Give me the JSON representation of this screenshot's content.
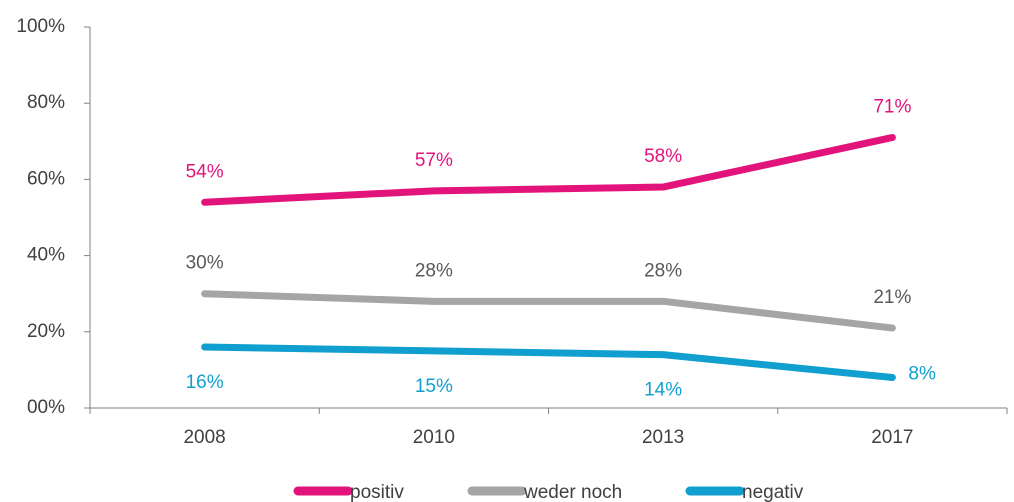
{
  "chart_data": {
    "type": "line",
    "categories": [
      "2008",
      "2010",
      "2013",
      "2017"
    ],
    "series": [
      {
        "name": "positiv",
        "color": "#e2147c",
        "values": [
          54,
          57,
          58,
          71
        ],
        "value_labels": [
          "54%",
          "57%",
          "58%",
          "71%"
        ]
      },
      {
        "name": "weder noch",
        "color": "#a5a5a5",
        "values": [
          30,
          28,
          28,
          21
        ],
        "value_labels": [
          "30%",
          "28%",
          "28%",
          "21%"
        ]
      },
      {
        "name": "negativ",
        "color": "#119fcf",
        "values": [
          16,
          15,
          14,
          8
        ],
        "value_labels": [
          "16%",
          "15%",
          "14%",
          "8%"
        ]
      }
    ],
    "ylim": [
      0,
      100
    ],
    "yticks": [
      {
        "value": 0,
        "label": "00%"
      },
      {
        "value": 20,
        "label": "20%"
      },
      {
        "value": 40,
        "label": "40%"
      },
      {
        "value": 60,
        "label": "60%"
      },
      {
        "value": 80,
        "label": "80%"
      },
      {
        "value": 100,
        "label": "100%"
      }
    ],
    "grid": false,
    "legend": "bottom"
  }
}
